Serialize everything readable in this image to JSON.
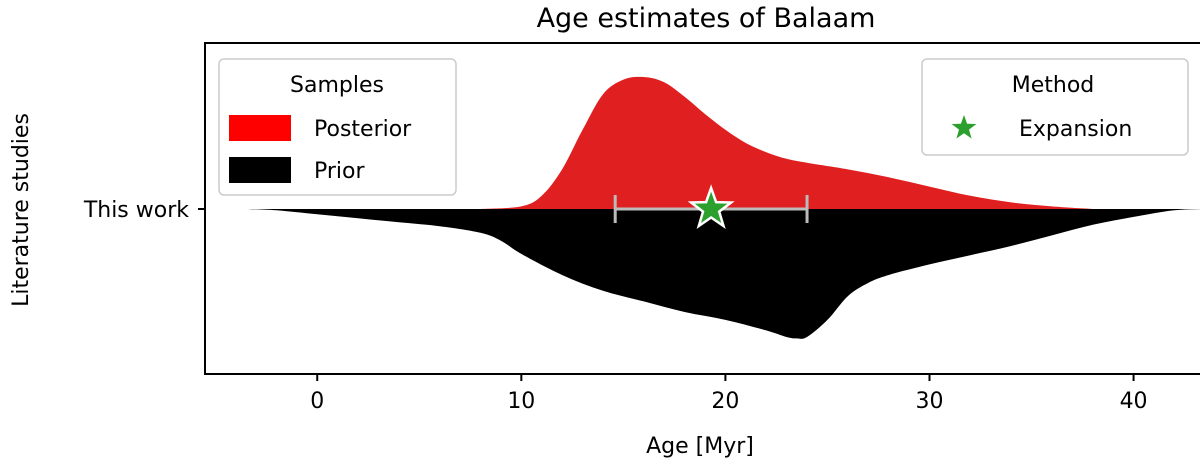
{
  "chart_data": {
    "type": "violin",
    "title": "Age estimates of Balaam",
    "xlabel": "Age [Myr]",
    "ylabel": "Literature studies",
    "xlim": [
      -5.5,
      43.5
    ],
    "xticks": [
      0,
      10,
      20,
      30,
      40
    ],
    "xtick_labels": [
      "0",
      "10",
      "20",
      "30",
      "40"
    ],
    "categories": [
      "This work"
    ],
    "grid": false,
    "series": [
      {
        "name": "Posterior",
        "color": "#e02020",
        "side": "upper",
        "density": {
          "x": [
            8,
            10,
            11,
            12,
            13,
            14,
            15,
            16,
            17,
            18,
            19,
            20,
            21,
            22,
            23,
            24,
            26,
            28,
            30,
            32,
            34,
            36,
            38
          ],
          "y": [
            0.0,
            0.02,
            0.1,
            0.3,
            0.6,
            0.87,
            0.98,
            1.0,
            0.96,
            0.85,
            0.72,
            0.6,
            0.5,
            0.43,
            0.38,
            0.35,
            0.3,
            0.24,
            0.17,
            0.1,
            0.05,
            0.02,
            0.0
          ]
        }
      },
      {
        "name": "Prior",
        "color": "#000000",
        "side": "lower",
        "density": {
          "x": [
            -3.5,
            -2,
            0,
            2,
            4,
            6,
            8,
            9,
            10,
            12,
            14,
            16,
            18,
            20,
            22,
            23,
            23.5,
            24,
            25,
            26,
            27,
            28,
            30,
            32,
            34,
            36,
            38,
            40,
            42,
            43.5
          ],
          "y": [
            0.0,
            0.01,
            0.04,
            0.07,
            0.1,
            0.13,
            0.18,
            0.24,
            0.34,
            0.5,
            0.62,
            0.7,
            0.78,
            0.84,
            0.92,
            0.97,
            0.98,
            0.97,
            0.84,
            0.66,
            0.56,
            0.5,
            0.42,
            0.35,
            0.28,
            0.2,
            0.12,
            0.06,
            0.01,
            0.0
          ]
        }
      }
    ],
    "estimates": [
      {
        "method": "Expansion",
        "value": 19.3,
        "low": 14.6,
        "high": 24.0,
        "marker": "star",
        "color": "#2ca02c",
        "errorbar_color": "#bbbbbb"
      }
    ],
    "legend_samples": {
      "title": "Samples",
      "entries": [
        "Posterior",
        "Prior"
      ],
      "placement": "upper-left"
    },
    "legend_method": {
      "title": "Method",
      "entries": [
        "Expansion"
      ],
      "placement": "upper-right"
    }
  }
}
